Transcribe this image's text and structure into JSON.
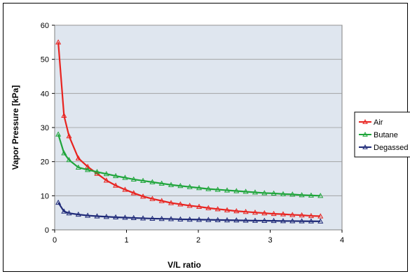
{
  "chart_data": {
    "type": "line",
    "xlabel": "V/L ratio",
    "ylabel": "Vapor Pressure [kPa]",
    "xlim": [
      0,
      4
    ],
    "ylim": [
      0,
      60
    ],
    "xticks": [
      0,
      1,
      2,
      3,
      4
    ],
    "yticks": [
      0,
      10,
      20,
      30,
      40,
      50,
      60
    ],
    "grid": "horizontal",
    "legend_position": "right",
    "plot_background": "#dfe6ef",
    "series": [
      {
        "name": "Air",
        "color": "#e8231f",
        "x": [
          0.05,
          0.13,
          0.2,
          0.33,
          0.46,
          0.59,
          0.72,
          0.85,
          0.98,
          1.1,
          1.23,
          1.36,
          1.49,
          1.62,
          1.75,
          1.88,
          2.01,
          2.14,
          2.27,
          2.4,
          2.53,
          2.66,
          2.79,
          2.92,
          3.05,
          3.18,
          3.31,
          3.44,
          3.57,
          3.7
        ],
        "values": [
          55,
          33.5,
          27.5,
          21,
          18.5,
          16.5,
          14.5,
          13,
          11.8,
          10.8,
          9.8,
          9.1,
          8.5,
          7.9,
          7.5,
          7.1,
          6.8,
          6.4,
          6.1,
          5.8,
          5.5,
          5.3,
          5.1,
          4.9,
          4.7,
          4.6,
          4.4,
          4.3,
          4.1,
          4.0
        ]
      },
      {
        "name": "Butane",
        "color": "#1fa53b",
        "x": [
          0.05,
          0.13,
          0.2,
          0.33,
          0.46,
          0.59,
          0.72,
          0.85,
          0.98,
          1.1,
          1.23,
          1.36,
          1.49,
          1.62,
          1.75,
          1.88,
          2.01,
          2.14,
          2.27,
          2.4,
          2.53,
          2.66,
          2.79,
          2.92,
          3.05,
          3.18,
          3.31,
          3.44,
          3.57,
          3.7
        ],
        "values": [
          28,
          22.5,
          20.5,
          18.3,
          17.6,
          17.0,
          16.4,
          15.8,
          15.3,
          14.8,
          14.4,
          14.0,
          13.6,
          13.2,
          12.9,
          12.6,
          12.3,
          12.0,
          11.8,
          11.6,
          11.4,
          11.2,
          11.0,
          10.8,
          10.7,
          10.5,
          10.4,
          10.2,
          10.1,
          10.0
        ]
      },
      {
        "name": "Degassed",
        "color": "#1f2a78",
        "x": [
          0.05,
          0.13,
          0.2,
          0.33,
          0.46,
          0.59,
          0.72,
          0.85,
          0.98,
          1.1,
          1.23,
          1.36,
          1.49,
          1.62,
          1.75,
          1.88,
          2.01,
          2.14,
          2.27,
          2.4,
          2.53,
          2.66,
          2.79,
          2.92,
          3.05,
          3.18,
          3.31,
          3.44,
          3.57,
          3.7
        ],
        "values": [
          8.0,
          5.4,
          4.9,
          4.5,
          4.2,
          4.0,
          3.85,
          3.7,
          3.6,
          3.5,
          3.4,
          3.3,
          3.25,
          3.2,
          3.1,
          3.05,
          3.0,
          2.95,
          2.9,
          2.85,
          2.8,
          2.75,
          2.7,
          2.68,
          2.65,
          2.6,
          2.58,
          2.55,
          2.52,
          2.5
        ]
      }
    ]
  }
}
